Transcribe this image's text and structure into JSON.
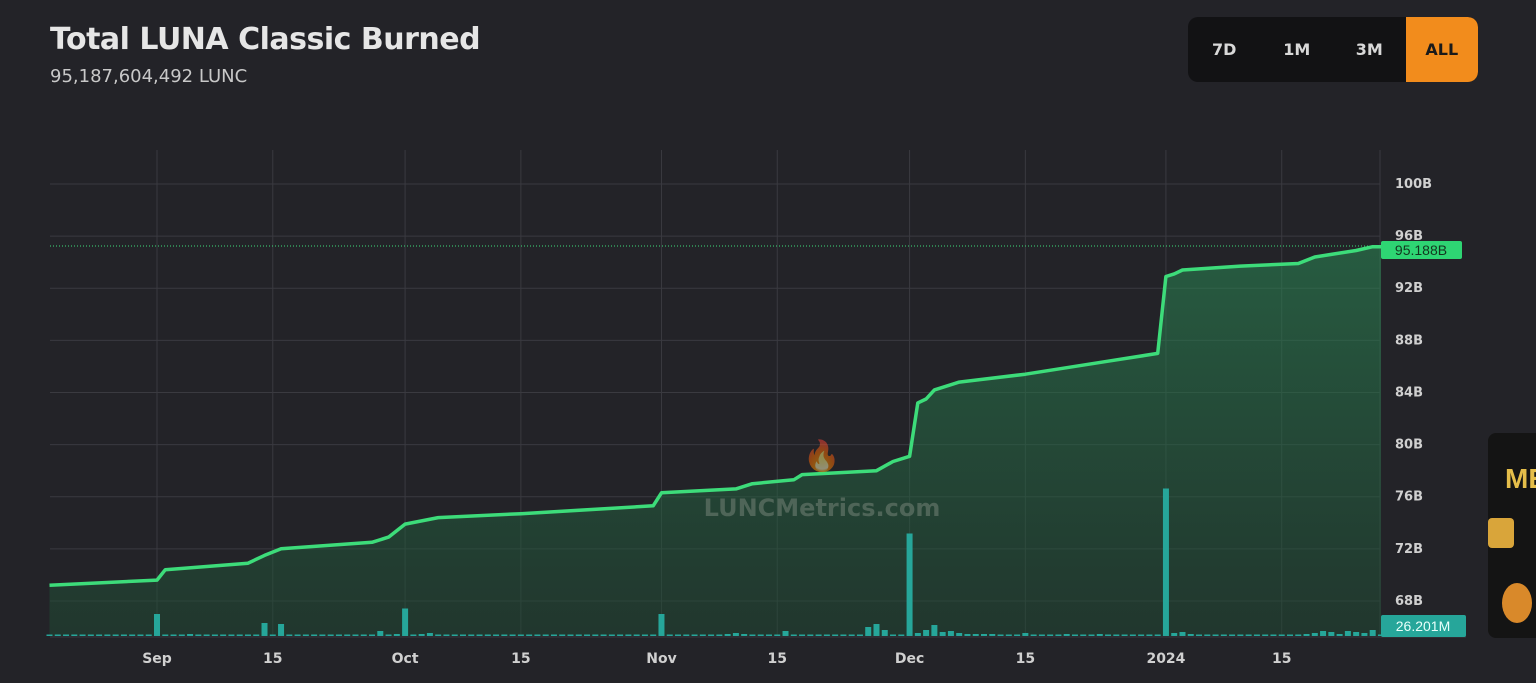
{
  "header": {
    "title": "Total LUNA Classic Burned",
    "subtitle": "95,187,604,492 LUNC"
  },
  "ranges": [
    {
      "label": "7D",
      "active": false
    },
    {
      "label": "1M",
      "active": false
    },
    {
      "label": "3M",
      "active": false
    },
    {
      "label": "ALL",
      "active": true
    }
  ],
  "watermark": "LUNCMetrics.com",
  "ad": {
    "text": "ME"
  },
  "colors": {
    "background": "#232328",
    "line": "#3ddc7a",
    "volume": "#26a69a",
    "price_label": "#2ed573",
    "volume_label": "#26a69a",
    "active_range": "#f28c1c"
  },
  "chart_data": {
    "type": "area",
    "title": "Total LUNA Classic Burned",
    "ylim": [
      66,
      103
    ],
    "y_ticks": [
      "100B",
      "96B",
      "92B",
      "88B",
      "84B",
      "80B",
      "76B",
      "72B",
      "68B"
    ],
    "y_tick_values": [
      100,
      96,
      92,
      88,
      84,
      80,
      76,
      72,
      68
    ],
    "x_ticks": [
      {
        "label": "Sep",
        "date": "2023-09-01"
      },
      {
        "label": "15",
        "date": "2023-09-15"
      },
      {
        "label": "Oct",
        "date": "2023-10-01"
      },
      {
        "label": "15",
        "date": "2023-10-15"
      },
      {
        "label": "Nov",
        "date": "2023-11-01"
      },
      {
        "label": "15",
        "date": "2023-11-15"
      },
      {
        "label": "Dec",
        "date": "2023-12-01"
      },
      {
        "label": "15",
        "date": "2023-12-15"
      },
      {
        "label": "2024",
        "date": "2024-01-01"
      },
      {
        "label": "15",
        "date": "2024-01-15"
      }
    ],
    "grid": true,
    "last_value_label": "95.188B",
    "last_volume_label": "26.201M",
    "series": [
      {
        "type": "line",
        "unit": "B LUNC",
        "points": [
          [
            "2023-08-19",
            69.2
          ],
          [
            "2023-09-01",
            69.6
          ],
          [
            "2023-09-02",
            70.4
          ],
          [
            "2023-09-12",
            70.9
          ],
          [
            "2023-09-14",
            71.5
          ],
          [
            "2023-09-16",
            72.0
          ],
          [
            "2023-09-27",
            72.5
          ],
          [
            "2023-09-29",
            72.9
          ],
          [
            "2023-10-01",
            73.9
          ],
          [
            "2023-10-05",
            74.4
          ],
          [
            "2023-10-15",
            74.7
          ],
          [
            "2023-10-31",
            75.3
          ],
          [
            "2023-11-01",
            76.3
          ],
          [
            "2023-11-10",
            76.6
          ],
          [
            "2023-11-12",
            77.0
          ],
          [
            "2023-11-17",
            77.3
          ],
          [
            "2023-11-18",
            77.7
          ],
          [
            "2023-11-27",
            78.0
          ],
          [
            "2023-11-29",
            78.7
          ],
          [
            "2023-12-01",
            79.1
          ],
          [
            "2023-12-02",
            83.2
          ],
          [
            "2023-12-03",
            83.5
          ],
          [
            "2023-12-04",
            84.2
          ],
          [
            "2023-12-07",
            84.8
          ],
          [
            "2023-12-15",
            85.4
          ],
          [
            "2023-12-20",
            85.9
          ],
          [
            "2023-12-25",
            86.4
          ],
          [
            "2023-12-31",
            87.0
          ],
          [
            "2024-01-01",
            92.9
          ],
          [
            "2024-01-02",
            93.1
          ],
          [
            "2024-01-03",
            93.4
          ],
          [
            "2024-01-10",
            93.7
          ],
          [
            "2024-01-17",
            93.9
          ],
          [
            "2024-01-19",
            94.4
          ],
          [
            "2024-01-21",
            94.6
          ],
          [
            "2024-01-24",
            94.9
          ],
          [
            "2024-01-26",
            95.188
          ],
          [
            "2024-01-27",
            95.188
          ]
        ]
      },
      {
        "type": "bar",
        "unit": "M LUNC",
        "start": "2023-08-19",
        "values": [
          40,
          40,
          40,
          40,
          40,
          40,
          40,
          40,
          40,
          40,
          40,
          40,
          40,
          880,
          60,
          40,
          60,
          80,
          40,
          40,
          40,
          40,
          40,
          40,
          60,
          40,
          520,
          40,
          480,
          40,
          40,
          40,
          40,
          40,
          40,
          40,
          60,
          40,
          40,
          40,
          200,
          40,
          80,
          1100,
          40,
          80,
          120,
          60,
          40,
          60,
          40,
          40,
          60,
          40,
          40,
          60,
          40,
          40,
          60,
          40,
          40,
          40,
          40,
          40,
          40,
          40,
          60,
          40,
          40,
          40,
          40,
          40,
          40,
          40,
          880,
          40,
          40,
          40,
          40,
          40,
          40,
          60,
          80,
          120,
          80,
          60,
          40,
          40,
          40,
          200,
          40,
          40,
          60,
          60,
          40,
          40,
          40,
          40,
          40,
          360,
          480,
          240,
          40,
          40,
          4100,
          120,
          240,
          440,
          160,
          200,
          120,
          80,
          80,
          80,
          80,
          60,
          60,
          60,
          120,
          60,
          60,
          60,
          60,
          80,
          60,
          60,
          60,
          80,
          60,
          60,
          60,
          60,
          60,
          60,
          60,
          5900,
          120,
          160,
          80,
          60,
          60,
          60,
          60,
          60,
          60,
          60,
          60,
          60,
          60,
          60,
          60,
          60,
          80,
          120,
          200,
          160,
          80,
          200,
          160,
          120,
          240,
          26.201
        ]
      }
    ]
  }
}
